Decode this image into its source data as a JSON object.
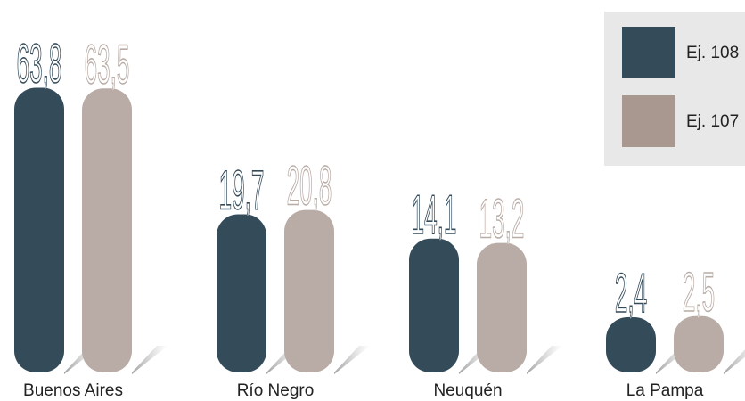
{
  "chart_data": {
    "type": "bar",
    "categories": [
      "Buenos Aires",
      "Río Negro",
      "Neuquén",
      "La Pampa"
    ],
    "series": [
      {
        "name": "Ej. 108",
        "color": "#344b5a",
        "values": [
          63.8,
          19.7,
          14.1,
          2.4
        ],
        "value_labels": [
          "63,8",
          "19,7",
          "14,1",
          "2,4"
        ]
      },
      {
        "name": "Ej. 107",
        "color": "#b9aca6",
        "values": [
          63.5,
          20.8,
          13.2,
          2.5
        ],
        "value_labels": [
          "63,5",
          "20,8",
          "13,2",
          "2,5"
        ]
      }
    ],
    "legend": "top-right"
  }
}
